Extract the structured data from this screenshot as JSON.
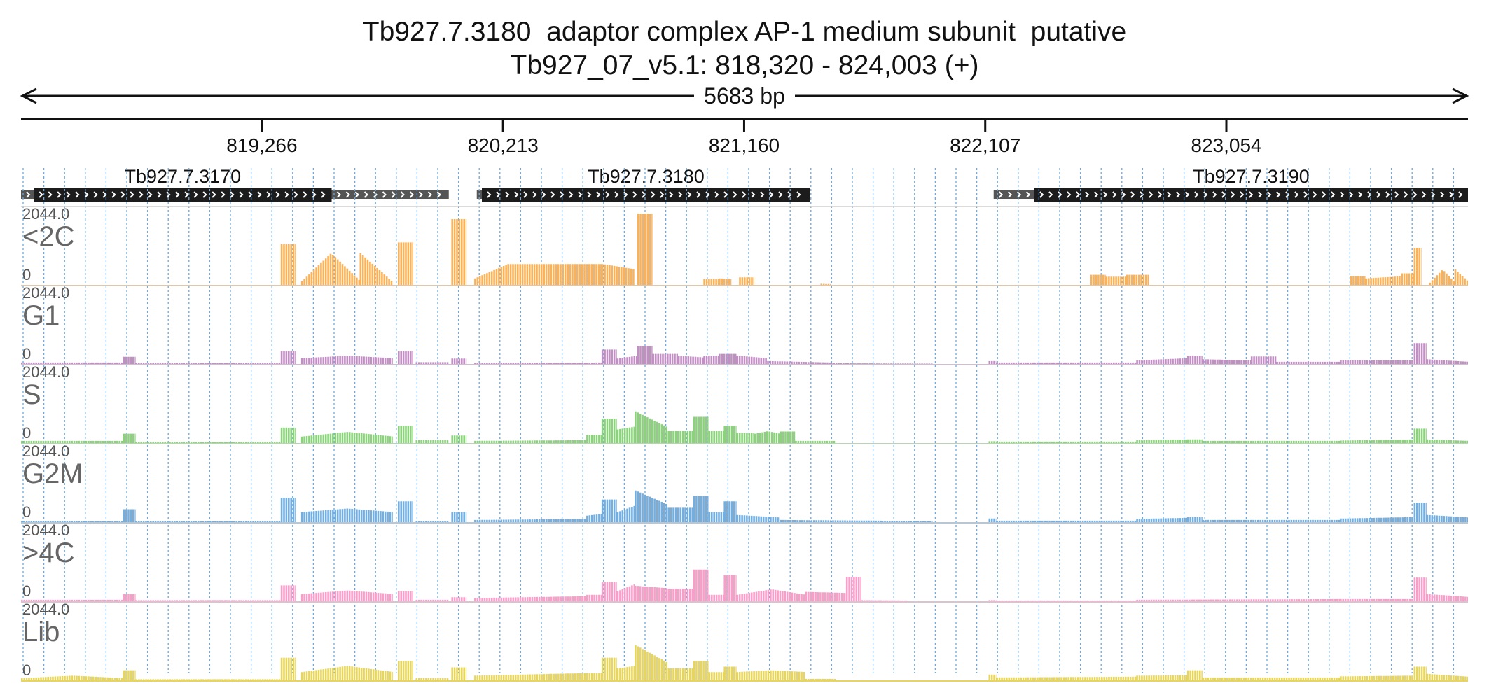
{
  "header": {
    "title": "Tb927.7.3180  adaptor complex AP-1 medium subunit  putative",
    "subtitle": "Tb927_07_v5.1: 818,320 - 824,003 (+)"
  },
  "chart_data": {
    "type": "area",
    "region": {
      "chrom": "Tb927_07_v5.1",
      "start": 818320,
      "end": 824003,
      "strand": "+"
    },
    "span_label": "5683 bp",
    "ticks": [
      {
        "value": 819266,
        "label": "819,266"
      },
      {
        "value": 820213,
        "label": "820,213"
      },
      {
        "value": 821160,
        "label": "821,160"
      },
      {
        "value": 822107,
        "label": "822,107"
      },
      {
        "value": 823054,
        "label": "823,054"
      }
    ],
    "genes": [
      {
        "name": "Tb927.7.3170",
        "cds": [
          818370,
          819540
        ],
        "utrs": [
          [
            818320,
            818370
          ],
          [
            819540,
            820000
          ]
        ]
      },
      {
        "name": "Tb927.7.3180",
        "cds": [
          820130,
          821420
        ],
        "utrs": [
          [
            820110,
            820130
          ]
        ]
      },
      {
        "name": "Tb927.7.3190",
        "cds": [
          822300,
          824003
        ],
        "utrs": [
          [
            822140,
            822300
          ]
        ]
      }
    ],
    "y_max_label": "2044.0",
    "y_min_label": "0",
    "ylim": [
      0,
      2044
    ],
    "tracks": [
      {
        "name": "<2C",
        "color": "#f9b25a",
        "segments": [
          [
            819340,
            819400,
            1150,
            1150
          ],
          [
            819420,
            819650,
            120,
            900,
            "tent"
          ],
          [
            819650,
            819780,
            900,
            80
          ],
          [
            819800,
            819860,
            1200,
            1200
          ],
          [
            820010,
            820070,
            1850,
            1850
          ],
          [
            820100,
            820230,
            200,
            600
          ],
          [
            820230,
            820600,
            600,
            600
          ],
          [
            820600,
            820730,
            600,
            450
          ],
          [
            820740,
            820800,
            2000,
            2000
          ],
          [
            821000,
            821060,
            180,
            180
          ],
          [
            821060,
            821110,
            200,
            180
          ],
          [
            821140,
            821200,
            230,
            230
          ],
          [
            821460,
            821500,
            50,
            40
          ],
          [
            822520,
            822580,
            300,
            300
          ],
          [
            822580,
            822660,
            250,
            250
          ],
          [
            822660,
            822750,
            300,
            300
          ],
          [
            823540,
            823600,
            260,
            260
          ],
          [
            823600,
            823740,
            200,
            260
          ],
          [
            823740,
            823790,
            340,
            340
          ],
          [
            823790,
            823820,
            1050,
            1050
          ],
          [
            823850,
            823950,
            80,
            450,
            "tent"
          ],
          [
            823950,
            824003,
            450,
            100
          ]
        ]
      },
      {
        "name": "G1",
        "color": "#c190c2",
        "segments": [
          [
            818320,
            818720,
            60,
            60
          ],
          [
            818720,
            818770,
            220,
            220
          ],
          [
            818770,
            819340,
            50,
            50
          ],
          [
            819340,
            819400,
            380,
            380
          ],
          [
            819420,
            819780,
            180,
            250,
            "tent"
          ],
          [
            819800,
            819860,
            380,
            380
          ],
          [
            819870,
            820000,
            70,
            70
          ],
          [
            820010,
            820070,
            170,
            170
          ],
          [
            820100,
            820600,
            50,
            60
          ],
          [
            820600,
            820660,
            420,
            420
          ],
          [
            820660,
            820740,
            170,
            250
          ],
          [
            820740,
            820800,
            520,
            520
          ],
          [
            820800,
            820900,
            300,
            300
          ],
          [
            820900,
            821000,
            250,
            200
          ],
          [
            821000,
            821060,
            250,
            250
          ],
          [
            821060,
            821130,
            300,
            300
          ],
          [
            821130,
            821250,
            250,
            180
          ],
          [
            821250,
            821500,
            100,
            60
          ],
          [
            821500,
            821900,
            40,
            30
          ],
          [
            822120,
            822150,
            100,
            100
          ],
          [
            822150,
            822700,
            60,
            60
          ],
          [
            822700,
            822900,
            120,
            180
          ],
          [
            822900,
            822960,
            250,
            250
          ],
          [
            822960,
            823150,
            150,
            120
          ],
          [
            823150,
            823250,
            230,
            230
          ],
          [
            823250,
            823500,
            80,
            80
          ],
          [
            823500,
            823790,
            120,
            120
          ],
          [
            823790,
            823840,
            600,
            600
          ],
          [
            823840,
            824003,
            150,
            80
          ]
        ]
      },
      {
        "name": "S",
        "color": "#8cd27d",
        "segments": [
          [
            818320,
            818720,
            80,
            80
          ],
          [
            818720,
            818770,
            280,
            280
          ],
          [
            818770,
            819340,
            50,
            50
          ],
          [
            819340,
            819400,
            450,
            450
          ],
          [
            819420,
            819780,
            200,
            330,
            "tent"
          ],
          [
            819800,
            819860,
            500,
            500
          ],
          [
            819870,
            820000,
            100,
            100
          ],
          [
            820010,
            820070,
            230,
            230
          ],
          [
            820100,
            820540,
            80,
            100
          ],
          [
            820540,
            820600,
            250,
            250
          ],
          [
            820600,
            820660,
            700,
            700
          ],
          [
            820660,
            820730,
            400,
            480
          ],
          [
            820730,
            820860,
            900,
            450
          ],
          [
            820860,
            820960,
            350,
            350
          ],
          [
            820960,
            821020,
            750,
            750
          ],
          [
            821020,
            821080,
            350,
            350
          ],
          [
            821080,
            821130,
            500,
            500
          ],
          [
            821130,
            821200,
            300,
            300
          ],
          [
            821200,
            821300,
            280,
            350,
            "tent"
          ],
          [
            821300,
            821360,
            340,
            340
          ],
          [
            821360,
            821520,
            80,
            80
          ],
          [
            822120,
            822150,
            70,
            70
          ],
          [
            822150,
            822700,
            60,
            60
          ],
          [
            822700,
            822900,
            100,
            120
          ],
          [
            822900,
            822960,
            120,
            120
          ],
          [
            822960,
            823500,
            80,
            80
          ],
          [
            823500,
            823790,
            90,
            120
          ],
          [
            823790,
            823840,
            420,
            420
          ],
          [
            823840,
            824003,
            120,
            80
          ]
        ]
      },
      {
        "name": "G2M",
        "color": "#74aede",
        "segments": [
          [
            818320,
            818720,
            50,
            50
          ],
          [
            818720,
            818770,
            380,
            380
          ],
          [
            818770,
            819340,
            50,
            50
          ],
          [
            819340,
            819400,
            700,
            700
          ],
          [
            819420,
            819780,
            300,
            400,
            "tent"
          ],
          [
            819800,
            819860,
            600,
            600
          ],
          [
            819870,
            820000,
            50,
            50
          ],
          [
            820010,
            820070,
            300,
            300
          ],
          [
            820100,
            820540,
            80,
            110
          ],
          [
            820540,
            820600,
            200,
            250
          ],
          [
            820600,
            820660,
            650,
            650
          ],
          [
            820660,
            820730,
            300,
            480
          ],
          [
            820730,
            820860,
            900,
            500
          ],
          [
            820860,
            820960,
            420,
            420
          ],
          [
            820960,
            821020,
            750,
            750
          ],
          [
            821020,
            821080,
            300,
            300
          ],
          [
            821080,
            821130,
            600,
            600
          ],
          [
            821130,
            821300,
            220,
            150
          ],
          [
            821300,
            821700,
            80,
            60
          ],
          [
            821700,
            821900,
            50,
            50
          ],
          [
            822120,
            822150,
            120,
            120
          ],
          [
            822150,
            822700,
            60,
            60
          ],
          [
            822700,
            822900,
            110,
            140
          ],
          [
            822900,
            822960,
            160,
            160
          ],
          [
            822960,
            823500,
            80,
            80
          ],
          [
            823500,
            823790,
            120,
            160
          ],
          [
            823790,
            823840,
            560,
            560
          ],
          [
            823840,
            824003,
            220,
            150
          ]
        ]
      },
      {
        "name": ">4C",
        "color": "#f79fc8",
        "segments": [
          [
            818320,
            818720,
            60,
            60
          ],
          [
            818720,
            818770,
            220,
            220
          ],
          [
            818770,
            819340,
            50,
            50
          ],
          [
            819340,
            819400,
            460,
            460
          ],
          [
            819420,
            819780,
            220,
            320,
            "tent"
          ],
          [
            819800,
            819860,
            300,
            300
          ],
          [
            819870,
            820000,
            60,
            60
          ],
          [
            820010,
            820070,
            130,
            130
          ],
          [
            820100,
            820540,
            110,
            160
          ],
          [
            820540,
            820600,
            200,
            200
          ],
          [
            820600,
            820660,
            550,
            550
          ],
          [
            820660,
            820730,
            300,
            500
          ],
          [
            820730,
            820860,
            450,
            380
          ],
          [
            820860,
            820960,
            370,
            370
          ],
          [
            820960,
            821020,
            900,
            900
          ],
          [
            821020,
            821080,
            200,
            200
          ],
          [
            821080,
            821130,
            750,
            750
          ],
          [
            821130,
            821400,
            200,
            350,
            "tent"
          ],
          [
            821400,
            821560,
            280,
            250
          ],
          [
            821560,
            821620,
            700,
            700
          ],
          [
            821620,
            821800,
            50,
            40
          ],
          [
            822120,
            822150,
            50,
            50
          ],
          [
            822150,
            822700,
            40,
            40
          ],
          [
            822700,
            823500,
            60,
            80
          ],
          [
            823500,
            823790,
            80,
            80
          ],
          [
            823790,
            823840,
            680,
            680
          ],
          [
            823840,
            824003,
            220,
            140
          ]
        ]
      },
      {
        "name": "Lib",
        "color": "#e6d660",
        "segments": [
          [
            818320,
            818720,
            80,
            150,
            "tent"
          ],
          [
            818720,
            818770,
            300,
            300
          ],
          [
            818770,
            819340,
            50,
            50
          ],
          [
            819340,
            819400,
            650,
            650
          ],
          [
            819420,
            819780,
            250,
            420,
            "tent"
          ],
          [
            819800,
            819860,
            560,
            560
          ],
          [
            819870,
            820000,
            80,
            80
          ],
          [
            820010,
            820070,
            380,
            380
          ],
          [
            820100,
            820540,
            150,
            220
          ],
          [
            820540,
            820600,
            220,
            220
          ],
          [
            820600,
            820660,
            650,
            650
          ],
          [
            820660,
            820730,
            350,
            420
          ],
          [
            820730,
            820860,
            1000,
            500
          ],
          [
            820860,
            820960,
            350,
            350
          ],
          [
            820960,
            821020,
            560,
            560
          ],
          [
            821020,
            821080,
            250,
            250
          ],
          [
            821080,
            821130,
            400,
            400
          ],
          [
            821130,
            821400,
            250,
            300,
            "tent"
          ],
          [
            821400,
            821520,
            60,
            60
          ],
          [
            822120,
            822150,
            180,
            180
          ],
          [
            822150,
            822700,
            100,
            120
          ],
          [
            822700,
            822900,
            150,
            160
          ],
          [
            822900,
            822960,
            300,
            300
          ],
          [
            822960,
            823500,
            100,
            100
          ],
          [
            823500,
            823790,
            130,
            150
          ],
          [
            823790,
            823840,
            400,
            400
          ],
          [
            823840,
            824003,
            200,
            120
          ]
        ]
      }
    ]
  }
}
